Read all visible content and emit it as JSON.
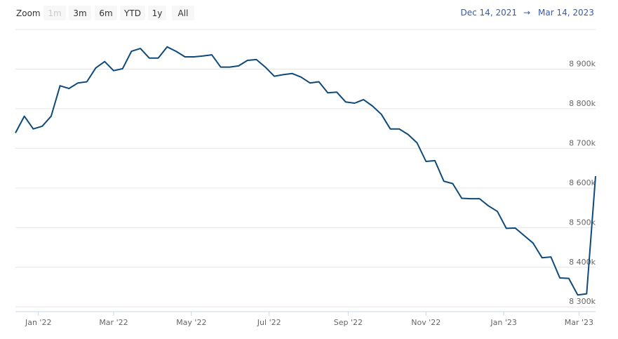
{
  "chart_data": {
    "type": "line",
    "range_selector": {
      "label": "Zoom",
      "buttons": [
        "1m",
        "3m",
        "6m",
        "YTD",
        "1y",
        "All"
      ],
      "disabled": "1m"
    },
    "xlim": [
      "Dec 14, 2021",
      "Mar 14, 2023"
    ],
    "range_separator": "→",
    "xticks": [
      {
        "value": "2022-01",
        "label": "Jan '22"
      },
      {
        "value": "2022-03",
        "label": "Mar '22"
      },
      {
        "value": "2022-05",
        "label": "May '22"
      },
      {
        "value": "2022-07",
        "label": "Jul '22"
      },
      {
        "value": "2022-09",
        "label": "Sep '22"
      },
      {
        "value": "2022-11",
        "label": "Nov '22"
      },
      {
        "value": "2023-01",
        "label": "Jan '23"
      },
      {
        "value": "2023-03",
        "label": "Mar '23"
      }
    ],
    "ylim": [
      8288000,
      9000000
    ],
    "yticks": [
      {
        "value": 8300000,
        "label": "8 300k"
      },
      {
        "value": 8400000,
        "label": "8 400k"
      },
      {
        "value": 8500000,
        "label": "8 500k"
      },
      {
        "value": 8600000,
        "label": "8 600k"
      },
      {
        "value": 8700000,
        "label": "8 700k"
      },
      {
        "value": 8800000,
        "label": "8 800k"
      },
      {
        "value": 8900000,
        "label": "8 900k"
      }
    ],
    "grid": true,
    "series": [
      {
        "color": "#0d4a7a",
        "values": [
          8739000,
          8781000,
          8749000,
          8756000,
          8781000,
          8858000,
          8851000,
          8865000,
          8868000,
          8903000,
          8919000,
          8896000,
          8901000,
          8945000,
          8952000,
          8928000,
          8928000,
          8956000,
          8945000,
          8931000,
          8931000,
          8933000,
          8936000,
          8905000,
          8905000,
          8908000,
          8922000,
          8924000,
          8905000,
          8882000,
          8886000,
          8889000,
          8880000,
          8865000,
          8868000,
          8840000,
          8842000,
          8817000,
          8814000,
          8823000,
          8807000,
          8786000,
          8749000,
          8749000,
          8735000,
          8714000,
          8667000,
          8669000,
          8617000,
          8611000,
          8574000,
          8573000,
          8573000,
          8555000,
          8541000,
          8498000,
          8499000,
          8480000,
          8461000,
          8424000,
          8426000,
          8373000,
          8372000,
          8330000,
          8333000,
          8630000
        ]
      }
    ]
  }
}
